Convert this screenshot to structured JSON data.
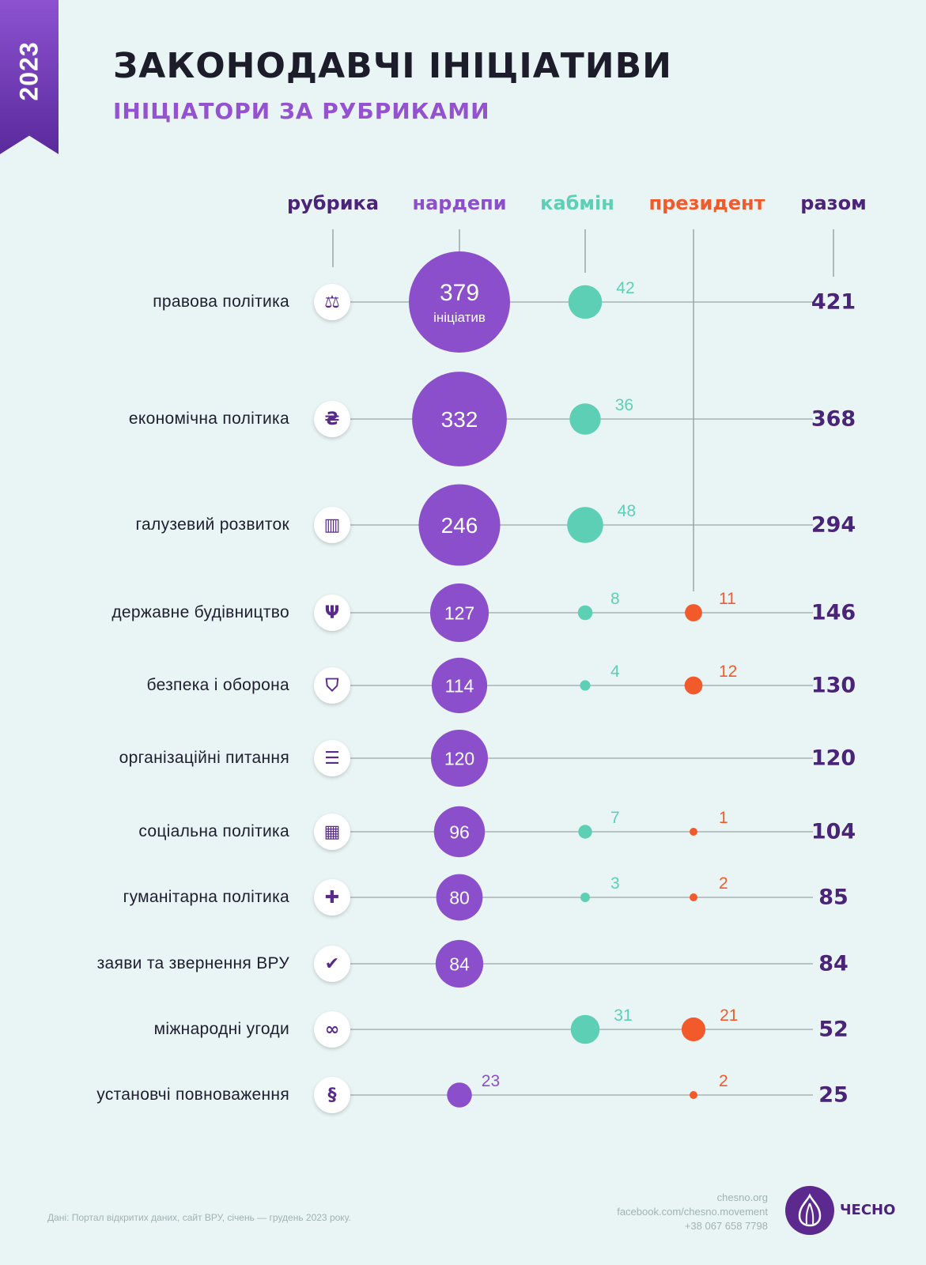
{
  "year": "2023",
  "title": "ЗАКОНОДАВЧІ ІНІЦІАТИВИ",
  "subtitle": "ІНІЦІАТОРИ ЗА РУБРИКАМИ",
  "headers": {
    "rubric": "рубрика",
    "mps": "нардепи",
    "cabmin": "кабмін",
    "president": "президент",
    "total": "разом"
  },
  "first_bubble_caption": "ініціатив",
  "colors": {
    "mps": "#8c4fcc",
    "cabmin": "#5ccfb4",
    "president": "#f25a2c",
    "rubric_header": "#4a2478",
    "total_text": "#4a2478"
  },
  "chart_data": {
    "type": "bubble-table",
    "columns": [
      "нардепи",
      "кабмін",
      "президент",
      "разом"
    ],
    "rows": [
      {
        "label": "правова політика",
        "icon": "scales-icon",
        "mps": 379,
        "cabmin": 42,
        "president": null,
        "total": 421
      },
      {
        "label": "економічна політика",
        "icon": "hryvnia-icon",
        "mps": 332,
        "cabmin": 36,
        "president": null,
        "total": 368
      },
      {
        "label": "галузевий розвиток",
        "icon": "factory-icon",
        "mps": 246,
        "cabmin": 48,
        "president": null,
        "total": 294
      },
      {
        "label": "державне будівництво",
        "icon": "trident-icon",
        "mps": 127,
        "cabmin": 8,
        "president": 11,
        "total": 146
      },
      {
        "label": "безпека і оборона",
        "icon": "shield-icon",
        "mps": 114,
        "cabmin": 4,
        "president": 12,
        "total": 130
      },
      {
        "label": "організаційні питання",
        "icon": "sliders-icon",
        "mps": 120,
        "cabmin": null,
        "president": null,
        "total": 120
      },
      {
        "label": "соціальна політика",
        "icon": "building-icon",
        "mps": 96,
        "cabmin": 7,
        "president": 1,
        "total": 104
      },
      {
        "label": "гуманітарна політика",
        "icon": "cross-icon",
        "mps": 80,
        "cabmin": 3,
        "president": 2,
        "total": 85
      },
      {
        "label": "заяви та звернення ВРУ",
        "icon": "speech-check-icon",
        "mps": 84,
        "cabmin": null,
        "president": null,
        "total": 84
      },
      {
        "label": "міжнародні угоди",
        "icon": "handshake-icon",
        "mps": null,
        "cabmin": 31,
        "president": 21,
        "total": 52
      },
      {
        "label": "установчі повноваження",
        "icon": "section-icon",
        "mps": 23,
        "cabmin": null,
        "president": 2,
        "total": 25
      }
    ]
  },
  "footer": {
    "source": "Дані: Портал відкритих даних, сайт ВРУ, січень — грудень 2023 року.",
    "site": "chesno.org",
    "facebook": "facebook.com/chesno.movement",
    "phone": "+38 067 658 7798",
    "logo_text": "ЧЕСНО"
  }
}
